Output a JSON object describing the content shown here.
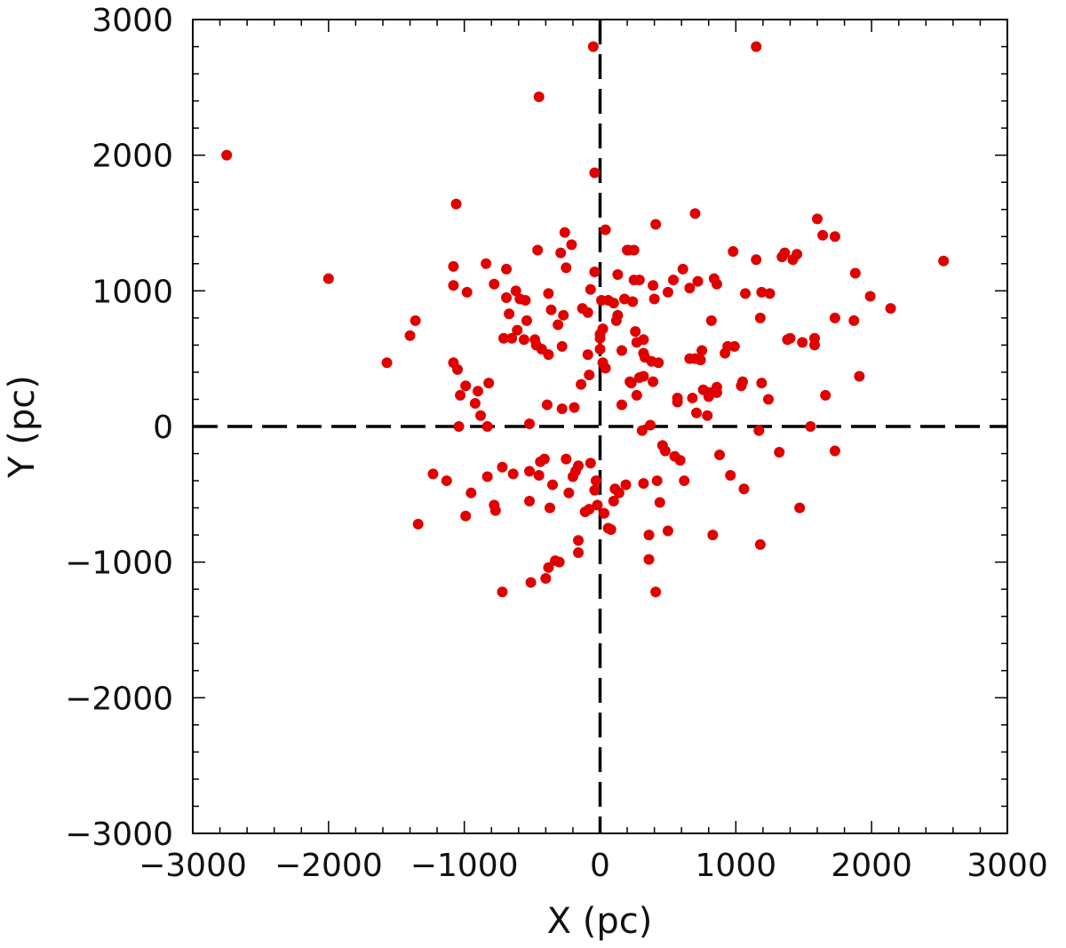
{
  "chart_data": {
    "type": "scatter",
    "title": "",
    "xlabel": "X (pc)",
    "ylabel": "Y (pc)",
    "xlim": [
      -3000,
      3000
    ],
    "ylim": [
      -3000,
      3000
    ],
    "xticks": [
      -3000,
      -2000,
      -1000,
      0,
      1000,
      2000,
      3000
    ],
    "yticks": [
      -3000,
      -2000,
      -1000,
      0,
      1000,
      2000,
      3000
    ],
    "xtick_labels": [
      "−3000",
      "−2000",
      "−1000",
      "0",
      "1000",
      "2000",
      "3000"
    ],
    "ytick_labels": [
      "−3000",
      "−2000",
      "−1000",
      "0",
      "1000",
      "2000",
      "3000"
    ],
    "grid": false,
    "reference_lines": [
      {
        "orientation": "horizontal",
        "value": 0,
        "style": "dashed",
        "color": "#000000"
      },
      {
        "orientation": "vertical",
        "value": 0,
        "style": "dashed",
        "color": "#000000"
      }
    ],
    "series": [
      {
        "color": "#e00000",
        "points": [
          [
            -2750,
            2000
          ],
          [
            -2000,
            1090
          ],
          [
            -1570,
            470
          ],
          [
            -1360,
            780
          ],
          [
            -1400,
            670
          ],
          [
            -1340,
            -720
          ],
          [
            -1230,
            -350
          ],
          [
            -1130,
            -400
          ],
          [
            -1080,
            1180
          ],
          [
            -1080,
            1040
          ],
          [
            -1060,
            1640
          ],
          [
            -1080,
            470
          ],
          [
            -1050,
            420
          ],
          [
            -1040,
            0
          ],
          [
            -1030,
            230
          ],
          [
            -990,
            300
          ],
          [
            -980,
            990
          ],
          [
            -990,
            -660
          ],
          [
            -950,
            -490
          ],
          [
            -920,
            170
          ],
          [
            -900,
            260
          ],
          [
            -880,
            80
          ],
          [
            -840,
            1200
          ],
          [
            -830,
            0
          ],
          [
            -830,
            -370
          ],
          [
            -820,
            320
          ],
          [
            -780,
            1050
          ],
          [
            -780,
            -580
          ],
          [
            -770,
            -620
          ],
          [
            -720,
            -300
          ],
          [
            -720,
            -1220
          ],
          [
            -710,
            650
          ],
          [
            -690,
            950
          ],
          [
            -690,
            1160
          ],
          [
            -670,
            830
          ],
          [
            -650,
            650
          ],
          [
            -640,
            -350
          ],
          [
            -620,
            1000
          ],
          [
            -610,
            710
          ],
          [
            -590,
            940
          ],
          [
            -560,
            640
          ],
          [
            -550,
            930
          ],
          [
            -540,
            780
          ],
          [
            -520,
            -330
          ],
          [
            -520,
            20
          ],
          [
            -520,
            -550
          ],
          [
            -510,
            -1150
          ],
          [
            -480,
            640
          ],
          [
            -470,
            600
          ],
          [
            -460,
            1300
          ],
          [
            -450,
            2430
          ],
          [
            -450,
            -360
          ],
          [
            -440,
            -260
          ],
          [
            -430,
            570
          ],
          [
            -410,
            -240
          ],
          [
            -400,
            -1120
          ],
          [
            -390,
            160
          ],
          [
            -380,
            980
          ],
          [
            -380,
            530
          ],
          [
            -380,
            -1040
          ],
          [
            -370,
            -600
          ],
          [
            -360,
            860
          ],
          [
            -350,
            -430
          ],
          [
            -330,
            -990
          ],
          [
            -310,
            750
          ],
          [
            -300,
            -1000
          ],
          [
            -290,
            1280
          ],
          [
            -280,
            590
          ],
          [
            -280,
            130
          ],
          [
            -270,
            820
          ],
          [
            -260,
            1430
          ],
          [
            -250,
            1170
          ],
          [
            -250,
            -240
          ],
          [
            -230,
            -490
          ],
          [
            -210,
            1340
          ],
          [
            -200,
            -370
          ],
          [
            -190,
            140
          ],
          [
            -180,
            -330
          ],
          [
            -160,
            -840
          ],
          [
            -160,
            -930
          ],
          [
            -160,
            -290
          ],
          [
            -140,
            310
          ],
          [
            -130,
            870
          ],
          [
            -110,
            -630
          ],
          [
            -90,
            530
          ],
          [
            -90,
            840
          ],
          [
            -80,
            380
          ],
          [
            -80,
            -610
          ],
          [
            -70,
            1010
          ],
          [
            -70,
            -270
          ],
          [
            -50,
            2800
          ],
          [
            -40,
            1870
          ],
          [
            -40,
            1140
          ],
          [
            -40,
            -470
          ],
          [
            -30,
            -400
          ],
          [
            -20,
            -580
          ],
          [
            0,
            570
          ],
          [
            0,
            680
          ],
          [
            0,
            650
          ],
          [
            10,
            930
          ],
          [
            20,
            720
          ],
          [
            20,
            470
          ],
          [
            30,
            -640
          ],
          [
            40,
            1450
          ],
          [
            40,
            430
          ],
          [
            60,
            930
          ],
          [
            60,
            -750
          ],
          [
            80,
            -760
          ],
          [
            100,
            910
          ],
          [
            100,
            -550
          ],
          [
            110,
            -460
          ],
          [
            120,
            780
          ],
          [
            130,
            1120
          ],
          [
            130,
            820
          ],
          [
            140,
            -490
          ],
          [
            160,
            160
          ],
          [
            160,
            560
          ],
          [
            180,
            940
          ],
          [
            190,
            -430
          ],
          [
            200,
            1300
          ],
          [
            210,
            1300
          ],
          [
            220,
            330
          ],
          [
            230,
            320
          ],
          [
            240,
            920
          ],
          [
            250,
            1080
          ],
          [
            250,
            1300
          ],
          [
            260,
            700
          ],
          [
            270,
            620
          ],
          [
            270,
            230
          ],
          [
            290,
            1080
          ],
          [
            290,
            360
          ],
          [
            310,
            -30
          ],
          [
            320,
            370
          ],
          [
            320,
            -420
          ],
          [
            320,
            540
          ],
          [
            320,
            640
          ],
          [
            330,
            510
          ],
          [
            360,
            -800
          ],
          [
            360,
            -980
          ],
          [
            370,
            10
          ],
          [
            380,
            480
          ],
          [
            390,
            1040
          ],
          [
            390,
            330
          ],
          [
            400,
            940
          ],
          [
            410,
            1490
          ],
          [
            410,
            -1220
          ],
          [
            420,
            -400
          ],
          [
            430,
            470
          ],
          [
            440,
            -560
          ],
          [
            460,
            -140
          ],
          [
            480,
            -180
          ],
          [
            500,
            -770
          ],
          [
            500,
            990
          ],
          [
            540,
            1080
          ],
          [
            550,
            -220
          ],
          [
            570,
            180
          ],
          [
            570,
            210
          ],
          [
            590,
            -250
          ],
          [
            610,
            1160
          ],
          [
            620,
            -400
          ],
          [
            660,
            1020
          ],
          [
            660,
            500
          ],
          [
            680,
            210
          ],
          [
            700,
            1570
          ],
          [
            700,
            500
          ],
          [
            710,
            100
          ],
          [
            720,
            1070
          ],
          [
            740,
            490
          ],
          [
            750,
            560
          ],
          [
            760,
            270
          ],
          [
            790,
            80
          ],
          [
            800,
            220
          ],
          [
            810,
            250
          ],
          [
            820,
            780
          ],
          [
            830,
            -800
          ],
          [
            840,
            1090
          ],
          [
            860,
            1050
          ],
          [
            860,
            250
          ],
          [
            860,
            290
          ],
          [
            880,
            -210
          ],
          [
            920,
            540
          ],
          [
            940,
            590
          ],
          [
            960,
            -360
          ],
          [
            980,
            1290
          ],
          [
            990,
            590
          ],
          [
            1040,
            300
          ],
          [
            1050,
            330
          ],
          [
            1060,
            -460
          ],
          [
            1070,
            980
          ],
          [
            1150,
            1230
          ],
          [
            1170,
            -30
          ],
          [
            1180,
            800
          ],
          [
            1180,
            -870
          ],
          [
            1190,
            320
          ],
          [
            1190,
            990
          ],
          [
            1240,
            200
          ],
          [
            1250,
            980
          ],
          [
            1320,
            -190
          ],
          [
            1340,
            1250
          ],
          [
            1360,
            1280
          ],
          [
            1380,
            640
          ],
          [
            1400,
            650
          ],
          [
            1420,
            1230
          ],
          [
            1450,
            1270
          ],
          [
            1470,
            -600
          ],
          [
            1490,
            620
          ],
          [
            1550,
            0
          ],
          [
            1580,
            650
          ],
          [
            1580,
            600
          ],
          [
            1600,
            1530
          ],
          [
            1640,
            1410
          ],
          [
            1660,
            230
          ],
          [
            1730,
            -180
          ],
          [
            1730,
            1400
          ],
          [
            1730,
            800
          ],
          [
            1870,
            780
          ],
          [
            1880,
            1130
          ],
          [
            1910,
            370
          ],
          [
            1990,
            960
          ],
          [
            2140,
            870
          ],
          [
            2530,
            1220
          ],
          [
            1150,
            2800
          ]
        ]
      }
    ]
  }
}
